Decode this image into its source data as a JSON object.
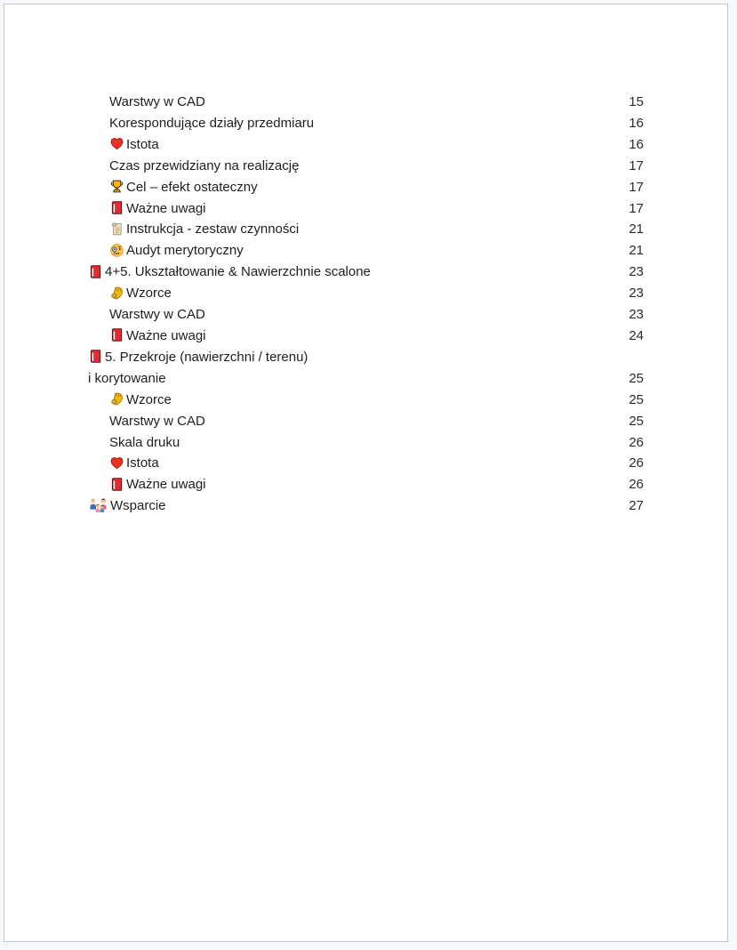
{
  "toc": {
    "entries": [
      {
        "label": "Warstwy w CAD",
        "page": "15",
        "level": 2,
        "icon": null
      },
      {
        "label": "Korespondujące działy przedmiaru",
        "page": "16",
        "level": 2,
        "icon": null
      },
      {
        "label": "Istota",
        "page": "16",
        "level": 2,
        "icon": "red-heart"
      },
      {
        "label": "Czas przewidziany na realizację",
        "page": "17",
        "level": 2,
        "icon": null
      },
      {
        "label": "Cel – efekt ostateczny",
        "page": "17",
        "level": 2,
        "icon": "trophy"
      },
      {
        "label": "Ważne uwagi",
        "page": "17",
        "level": 2,
        "icon": "red-book"
      },
      {
        "label": "Instrukcja - zestaw czynności",
        "page": "21",
        "level": 2,
        "icon": "scroll"
      },
      {
        "label": "Audyt merytoryczny",
        "page": "21",
        "level": 2,
        "icon": "monocle-face"
      },
      {
        "label": "4+5. Ukształtowanie & Nawierzchnie scalone",
        "page": "23",
        "level": 1,
        "icon": "red-book"
      },
      {
        "label": "Wzorce",
        "page": "23",
        "level": 2,
        "icon": "ok-hand"
      },
      {
        "label": "Warstwy w CAD",
        "page": "23",
        "level": 2,
        "icon": null
      },
      {
        "label": "Ważne uwagi",
        "page": "24",
        "level": 2,
        "icon": "red-book"
      },
      {
        "label": "5. Przekroje (nawierzchni / terenu)\ni korytowanie",
        "page": "25",
        "level": 1,
        "icon": "red-book"
      },
      {
        "label": "Wzorce",
        "page": "25",
        "level": 2,
        "icon": "ok-hand"
      },
      {
        "label": "Warstwy w CAD",
        "page": "25",
        "level": 2,
        "icon": null
      },
      {
        "label": "Skala druku",
        "page": "26",
        "level": 2,
        "icon": null
      },
      {
        "label": "Istota",
        "page": "26",
        "level": 2,
        "icon": "red-heart"
      },
      {
        "label": "Ważne uwagi",
        "page": "26",
        "level": 2,
        "icon": "red-book"
      },
      {
        "label": "Wsparcie",
        "page": "27",
        "level": 1,
        "icon": "family"
      }
    ]
  },
  "icons": {
    "red-heart": "❤️",
    "trophy": "🏆",
    "red-book": "📕",
    "scroll": "📜",
    "monocle-face": "🧐",
    "ok-hand": "👌",
    "family": "👨‍👩‍👧‍👦"
  },
  "colors": {
    "page_background": "#ffffff",
    "page_border": "#c3c6cb",
    "text": "#1e1e1e",
    "book_red": "#e62c32",
    "heart_red": "#ee3124",
    "trophy_gold": "#f9b616"
  }
}
